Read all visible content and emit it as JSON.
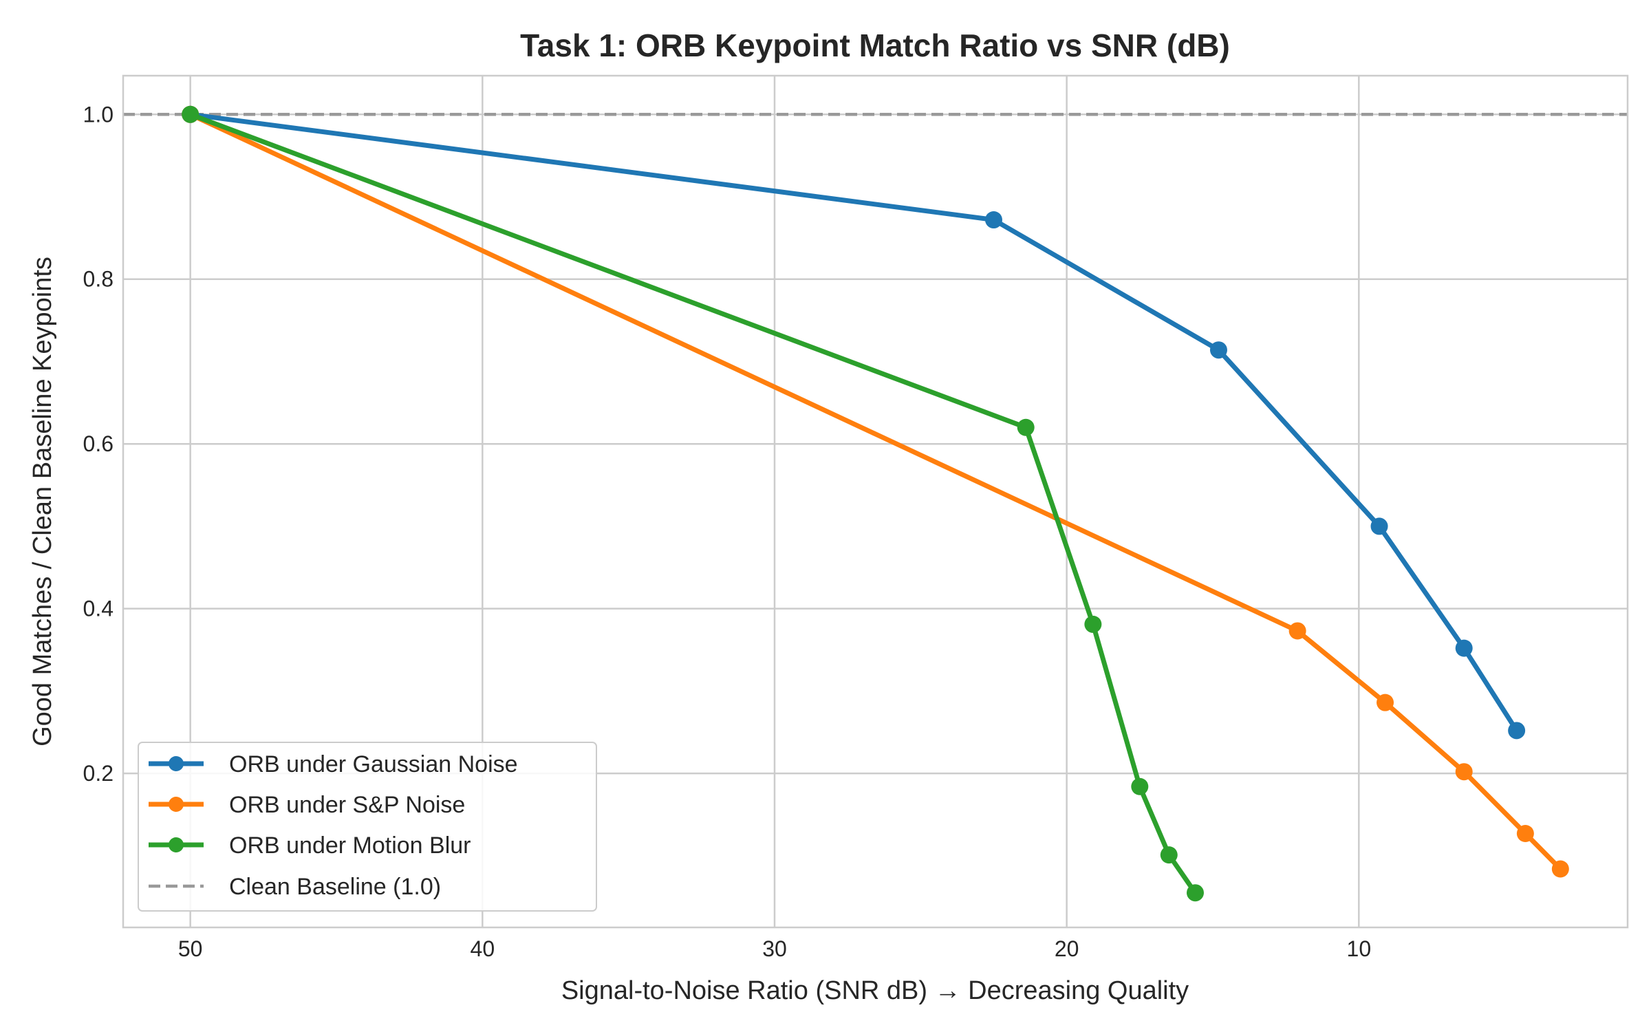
{
  "chart_data": {
    "type": "line",
    "title": "Task 1: ORB Keypoint Match Ratio vs SNR (dB)",
    "xlabel": "Signal-to-Noise Ratio (SNR dB) → Decreasing Quality",
    "ylabel": "Good Matches / Clean Baseline Keypoints",
    "xlim": [
      52.3,
      0.8
    ],
    "ylim": [
      0.013,
      1.047
    ],
    "x_inverted": true,
    "xticks": [
      50,
      40,
      30,
      20,
      10
    ],
    "yticks": [
      0.2,
      0.4,
      0.6,
      0.8,
      1.0
    ],
    "xtick_labels": [
      "50",
      "40",
      "30",
      "20",
      "10"
    ],
    "ytick_labels": [
      "0.2",
      "0.4",
      "0.6",
      "0.8",
      "1.0"
    ],
    "grid": true,
    "legend_position": "lower-left",
    "series": [
      {
        "name": "ORB under Gaussian Noise",
        "color": "#1f77b4",
        "marker": "circle",
        "x": [
          50,
          22.5,
          14.8,
          9.3,
          6.4,
          4.6
        ],
        "y": [
          1.0,
          0.872,
          0.714,
          0.5,
          0.352,
          0.252
        ]
      },
      {
        "name": "ORB under S&P Noise",
        "color": "#ff7f0e",
        "marker": "circle",
        "x": [
          50,
          12.1,
          9.1,
          6.4,
          4.3,
          3.1
        ],
        "y": [
          1.0,
          0.373,
          0.286,
          0.202,
          0.127,
          0.084
        ]
      },
      {
        "name": "ORB under Motion Blur",
        "color": "#2ca02c",
        "marker": "circle",
        "x": [
          50,
          21.4,
          19.1,
          17.5,
          16.5,
          15.6
        ],
        "y": [
          1.0,
          0.62,
          0.381,
          0.184,
          0.101,
          0.055
        ]
      }
    ],
    "reference_line": {
      "name": "Clean Baseline (1.0)",
      "y": 1.0,
      "color": "#999999",
      "style": "dashed"
    }
  }
}
